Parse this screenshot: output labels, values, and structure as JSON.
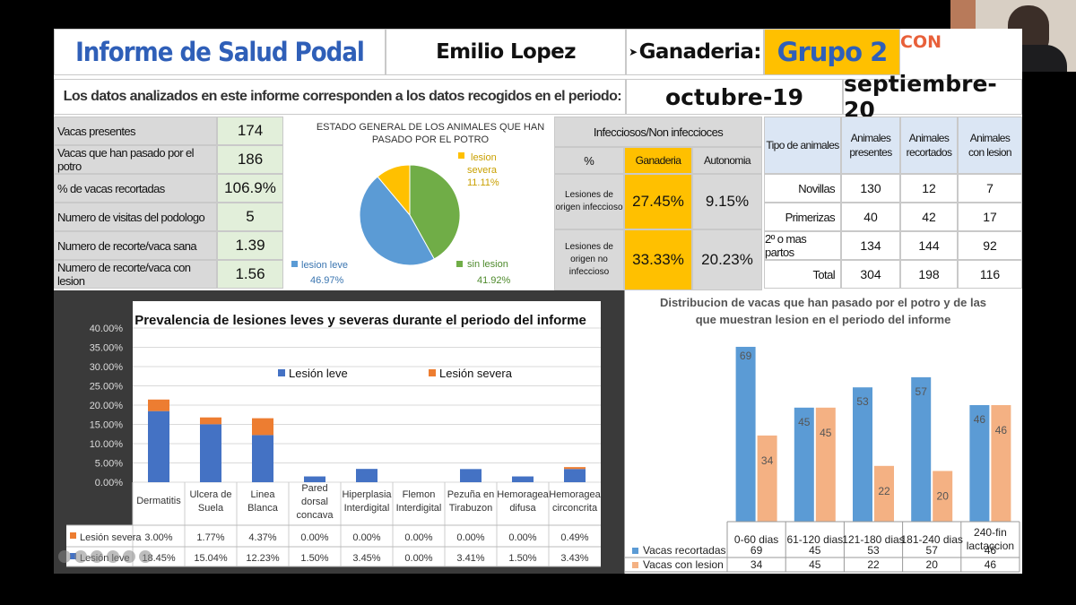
{
  "header": {
    "title": "Informe de Salud Podal",
    "name": "Emilio Lopez",
    "ganaderia_label": "Ganaderia:",
    "grupo": "Grupo 2",
    "logo_text": "CON"
  },
  "period": {
    "text": "Los datos analizados en este informe corresponden a los datos recogidos en el periodo:",
    "start": "octubre-19",
    "end": "septiembre-20"
  },
  "summary_rows": [
    {
      "label": "Vacas presentes",
      "value": "174"
    },
    {
      "label": "Vacas que han pasado por el potro",
      "value": "186"
    },
    {
      "label": "% de vacas recortadas",
      "value": "106.9%"
    },
    {
      "label": "Numero de visitas del podologo",
      "value": "5"
    },
    {
      "label": "Numero de recorte/vaca sana",
      "value": "1.39"
    },
    {
      "label": "Numero de recorte/vaca con lesion",
      "value": "1.56"
    }
  ],
  "pie": {
    "title_l1": "ESTADO GENERAL  DE LOS ANIMALES QUE HAN",
    "title_l2": "PASADO POR EL POTRO",
    "slices": [
      {
        "name_l1": "lesion",
        "name_l2": "severa",
        "pct": "11.11%",
        "value": 11.11,
        "color": "#ffc000"
      },
      {
        "name_l1": "sin lesion",
        "name_l2": "",
        "pct": "41.92%",
        "value": 41.92,
        "color": "#70ad47"
      },
      {
        "name_l1": "lesion leve",
        "name_l2": "",
        "pct": "46.97%",
        "value": 46.97,
        "color": "#5b9bd5"
      }
    ]
  },
  "infectious": {
    "header": "Infecciosos/Non infeccioces",
    "col_pct": "%",
    "col_ganaderia": "Ganaderia",
    "col_autonomia": "Autonomia",
    "rows": [
      {
        "l1": "Lesiones de",
        "l2": "origen infeccioso",
        "l3": "",
        "ganaderia": "27.45%",
        "autonomia": "9.15%"
      },
      {
        "l1": "Lesiones de",
        "l2": "origen no",
        "l3": "infeccioso",
        "ganaderia": "33.33%",
        "autonomia": "20.23%"
      }
    ]
  },
  "animals": {
    "headers": [
      "Tipo de animales",
      "Animales presentes",
      "Animales recortados",
      "Animales con lesion"
    ],
    "rows": [
      {
        "label": "Novillas",
        "presentes": "130",
        "recortados": "12",
        "lesion": "7"
      },
      {
        "label": "Primerizas",
        "presentes": "40",
        "recortados": "42",
        "lesion": "17"
      },
      {
        "label": "2º o mas partos",
        "presentes": "134",
        "recortados": "144",
        "lesion": "92"
      },
      {
        "label": "Total",
        "presentes": "304",
        "recortados": "198",
        "lesion": "116"
      }
    ]
  },
  "chart_data": [
    {
      "type": "bar",
      "stacked": true,
      "title": "Prevalencia  de lesiones  leves y severas  durante  el periodo  del informe",
      "categories": [
        "Dermatitis",
        "Ulcera de Suela",
        "Linea Blanca",
        "Pared dorsal concava",
        "Hiperplasia Interdigital",
        "Flemon Interdigital",
        "Pezuña en Tirabuzon",
        "Hemoragea difusa",
        "Hemoragea circoncrita"
      ],
      "category_lines": [
        [
          "Dermatitis"
        ],
        [
          "Ulcera de",
          "Suela"
        ],
        [
          "Linea",
          "Blanca"
        ],
        [
          "Pared",
          "dorsal",
          "concava"
        ],
        [
          "Hiperplasia",
          "Interdigital"
        ],
        [
          "Flemon",
          "Interdigital"
        ],
        [
          "Pezuña en",
          "Tirabuzon"
        ],
        [
          "Hemoragea",
          "difusa"
        ],
        [
          "Hemoragea",
          "circoncrita"
        ]
      ],
      "series": [
        {
          "name": "Lesión leve",
          "color": "#4472c4",
          "values": [
            18.45,
            15.04,
            12.23,
            1.5,
            3.45,
            0.0,
            3.41,
            1.5,
            3.43
          ],
          "labels": [
            "18.45%",
            "15.04%",
            "12.23%",
            "1.50%",
            "3.45%",
            "0.00%",
            "3.41%",
            "1.50%",
            "3.43%"
          ]
        },
        {
          "name": "Lesión severa",
          "color": "#ed7d31",
          "values": [
            3.0,
            1.77,
            4.37,
            0.0,
            0.0,
            0.0,
            0.0,
            0.0,
            0.49
          ],
          "labels": [
            "3.00%",
            "1.77%",
            "4.37%",
            "0.00%",
            "0.00%",
            "0.00%",
            "0.00%",
            "0.00%",
            "0.49%"
          ]
        }
      ],
      "table_labels": [
        "Lesión severa",
        "Lesión leve"
      ],
      "ylim": [
        0,
        40
      ],
      "yticks": [
        "0.00%",
        "5.00%",
        "10.00%",
        "15.00%",
        "20.00%",
        "25.00%",
        "30.00%",
        "35.00%",
        "40.00%"
      ],
      "grid": true,
      "legend": "top"
    },
    {
      "type": "bar",
      "title_l1": "Distribucion  de vacas que han pasado por el potro  y de las",
      "title_l2": "que muestran  lesion en el periodo  del informe",
      "categories": [
        "0-60 dias",
        "61-120 dias",
        "121-180 dias",
        "181-240 dias",
        "240-fin lactaccion"
      ],
      "category_lines": [
        [
          "0-60 dias"
        ],
        [
          "61-120 dias"
        ],
        [
          "121-180 dias"
        ],
        [
          "181-240 dias"
        ],
        [
          "240-fin",
          "lactaccion"
        ]
      ],
      "series": [
        {
          "name": "Vacas recortadas",
          "color": "#5b9bd5",
          "values": [
            69,
            45,
            53,
            57,
            46
          ]
        },
        {
          "name": "Vacas con lesion",
          "color": "#f4b183",
          "values": [
            34,
            45,
            22,
            20,
            46
          ]
        }
      ],
      "ylim": [
        0,
        75
      ],
      "legend": "table"
    }
  ]
}
